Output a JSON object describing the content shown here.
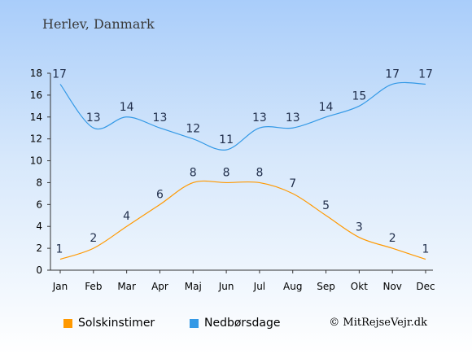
{
  "title": "Herlev, Danmark",
  "credit": "© MitRejseVejr.dk",
  "colors": {
    "sun": "#ff9900",
    "rain": "#3399e6"
  },
  "chart_data": {
    "type": "line",
    "categories": [
      "Jan",
      "Feb",
      "Mar",
      "Apr",
      "Maj",
      "Jun",
      "Jul",
      "Aug",
      "Sep",
      "Okt",
      "Nov",
      "Dec"
    ],
    "ylim": [
      0,
      18
    ],
    "yticks": [
      0,
      2,
      4,
      6,
      8,
      10,
      12,
      14,
      16,
      18
    ],
    "grid": false,
    "legend_position": "bottom",
    "series": [
      {
        "name": "Solskinstimer",
        "color": "#ff9900",
        "values": [
          1,
          2,
          4,
          6,
          8,
          8,
          8,
          7,
          5,
          3,
          2,
          1
        ]
      },
      {
        "name": "Nedbørsdage",
        "color": "#3399e6",
        "values": [
          17,
          13,
          14,
          13,
          12,
          11,
          13,
          13,
          14,
          15,
          17,
          17
        ]
      }
    ]
  }
}
